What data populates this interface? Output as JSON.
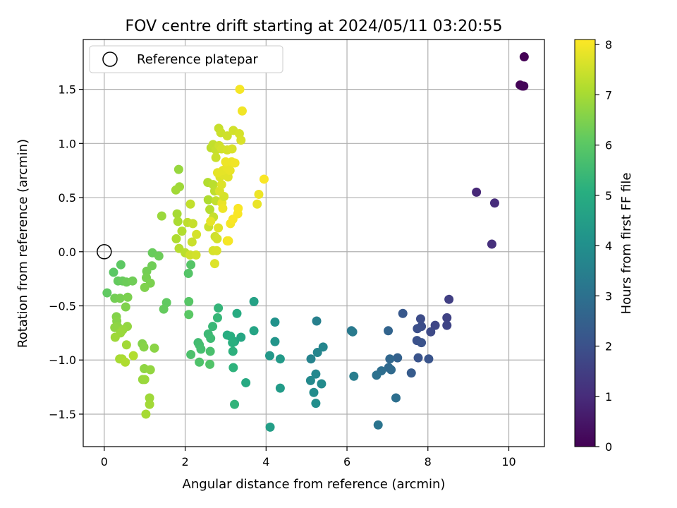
{
  "chart_data": {
    "type": "scatter",
    "title": "FOV centre drift starting at 2024/05/11 03:20:55",
    "xlabel": "Angular distance from reference (arcmin)",
    "ylabel": "Rotation from reference (arcmin)",
    "xlim": [
      -0.52,
      10.88
    ],
    "ylim": [
      -1.8,
      1.96
    ],
    "xticks": [
      0,
      2,
      4,
      6,
      8,
      10
    ],
    "xtick_labels": [
      "0",
      "2",
      "4",
      "6",
      "8",
      "10"
    ],
    "yticks": [
      -1.5,
      -1.0,
      -0.5,
      0.0,
      0.5,
      1.0,
      1.5
    ],
    "ytick_labels": [
      "−1.5",
      "−1.0",
      "−0.5",
      "0.0",
      "0.5",
      "1.0",
      "1.5"
    ],
    "grid": true,
    "legend": {
      "placement": "upper-left",
      "entries": [
        "Reference platepar"
      ]
    },
    "reference_point": {
      "x": 0,
      "y": 0
    },
    "colorbar": {
      "label": "Hours from first FF file",
      "range": [
        0,
        8.1
      ],
      "ticks": [
        0,
        1,
        2,
        3,
        4,
        5,
        6,
        7,
        8
      ],
      "tick_labels": [
        "0",
        "1",
        "2",
        "3",
        "4",
        "5",
        "6",
        "7",
        "8"
      ],
      "colormap": "viridis"
    },
    "points": [
      [
        10.38,
        1.8,
        0.03
      ],
      [
        10.28,
        1.54,
        0.05
      ],
      [
        10.33,
        1.53,
        0.07
      ],
      [
        10.37,
        1.53,
        0.1
      ],
      [
        9.2,
        0.55,
        0.9
      ],
      [
        9.65,
        0.45,
        1.0
      ],
      [
        9.58,
        0.07,
        1.1
      ],
      [
        8.52,
        -0.44,
        1.5
      ],
      [
        8.47,
        -0.61,
        1.6
      ],
      [
        8.47,
        -0.68,
        1.65
      ],
      [
        8.18,
        -0.68,
        1.7
      ],
      [
        8.07,
        -0.74,
        1.8
      ],
      [
        7.82,
        -0.62,
        1.85
      ],
      [
        7.84,
        -0.69,
        1.9
      ],
      [
        7.74,
        -0.71,
        1.95
      ],
      [
        7.73,
        -0.82,
        2.0
      ],
      [
        7.84,
        -0.84,
        2.05
      ],
      [
        7.76,
        -0.98,
        2.1
      ],
      [
        8.02,
        -0.99,
        2.1
      ],
      [
        7.38,
        -0.57,
        2.2
      ],
      [
        7.59,
        -1.12,
        2.3
      ],
      [
        7.25,
        -0.98,
        2.5
      ],
      [
        7.02,
        -0.73,
        2.6
      ],
      [
        7.06,
        -0.99,
        2.7
      ],
      [
        7.03,
        -1.07,
        2.75
      ],
      [
        7.09,
        -1.09,
        2.8
      ],
      [
        6.85,
        -1.1,
        2.9
      ],
      [
        7.21,
        -1.35,
        2.95
      ],
      [
        6.73,
        -1.14,
        3.0
      ],
      [
        6.77,
        -1.6,
        3.1
      ],
      [
        6.11,
        -0.73,
        3.2
      ],
      [
        6.14,
        -0.74,
        3.3
      ],
      [
        6.17,
        -1.15,
        3.4
      ],
      [
        5.25,
        -0.64,
        3.5
      ],
      [
        5.11,
        -0.99,
        3.6
      ],
      [
        5.27,
        -0.93,
        3.65
      ],
      [
        5.41,
        -0.88,
        3.7
      ],
      [
        5.23,
        -1.13,
        3.75
      ],
      [
        5.1,
        -1.19,
        3.8
      ],
      [
        5.37,
        -1.22,
        3.85
      ],
      [
        5.18,
        -1.3,
        3.9
      ],
      [
        5.23,
        -1.4,
        3.95
      ],
      [
        4.22,
        -0.65,
        4.1
      ],
      [
        4.22,
        -0.83,
        4.2
      ],
      [
        4.09,
        -0.96,
        4.3
      ],
      [
        4.35,
        -0.99,
        4.35
      ],
      [
        4.35,
        -1.26,
        4.4
      ],
      [
        4.1,
        -1.62,
        4.5
      ],
      [
        3.7,
        -0.46,
        4.6
      ],
      [
        3.7,
        -0.73,
        4.7
      ],
      [
        3.38,
        -0.79,
        4.8
      ],
      [
        3.22,
        -0.83,
        4.85
      ],
      [
        3.5,
        -1.21,
        4.9
      ],
      [
        3.28,
        -0.57,
        4.95
      ],
      [
        3.04,
        -0.77,
        5.0
      ],
      [
        3.12,
        -0.78,
        5.05
      ],
      [
        3.17,
        -0.84,
        5.1
      ],
      [
        3.18,
        -0.92,
        5.15
      ],
      [
        3.19,
        -1.07,
        5.2
      ],
      [
        3.22,
        -1.41,
        5.25
      ],
      [
        2.82,
        -0.52,
        5.3
      ],
      [
        2.8,
        -0.61,
        5.35
      ],
      [
        2.68,
        -0.69,
        5.4
      ],
      [
        2.57,
        -0.76,
        5.45
      ],
      [
        2.63,
        -0.8,
        5.5
      ],
      [
        2.32,
        -0.84,
        5.55
      ],
      [
        2.35,
        -0.86,
        5.6
      ],
      [
        2.39,
        -0.9,
        5.65
      ],
      [
        2.62,
        -0.92,
        5.7
      ],
      [
        2.14,
        -0.95,
        5.75
      ],
      [
        2.35,
        -1.02,
        5.8
      ],
      [
        2.61,
        -1.04,
        5.85
      ],
      [
        2.14,
        -0.12,
        5.9
      ],
      [
        2.08,
        -0.2,
        5.9
      ],
      [
        2.09,
        -0.46,
        5.95
      ],
      [
        2.09,
        -0.58,
        6.0
      ],
      [
        1.54,
        -0.47,
        6.1
      ],
      [
        1.47,
        -0.53,
        6.15
      ],
      [
        1.19,
        -0.01,
        6.2
      ],
      [
        1.35,
        -0.04,
        6.25
      ],
      [
        1.18,
        -0.13,
        6.3
      ],
      [
        1.05,
        -0.18,
        6.35
      ],
      [
        1.04,
        -0.24,
        6.4
      ],
      [
        1.14,
        -0.29,
        6.45
      ],
      [
        1.0,
        -0.33,
        6.5
      ],
      [
        0.94,
        -0.85,
        6.55
      ],
      [
        0.98,
        -0.88,
        6.6
      ],
      [
        1.24,
        -0.89,
        6.65
      ],
      [
        0.99,
        -1.08,
        6.7
      ],
      [
        1.14,
        -1.09,
        6.75
      ],
      [
        0.95,
        -1.18,
        6.8
      ],
      [
        1.0,
        -1.18,
        6.85
      ],
      [
        1.12,
        -1.35,
        6.9
      ],
      [
        1.12,
        -1.41,
        6.95
      ],
      [
        1.03,
        -1.5,
        7.0
      ],
      [
        0.23,
        -0.19,
        6.0
      ],
      [
        0.41,
        -0.12,
        6.05
      ],
      [
        0.07,
        -0.38,
        6.1
      ],
      [
        0.34,
        -0.27,
        6.15
      ],
      [
        0.45,
        -0.27,
        6.2
      ],
      [
        0.55,
        -0.28,
        6.25
      ],
      [
        0.7,
        -0.27,
        6.3
      ],
      [
        0.26,
        -0.43,
        6.35
      ],
      [
        0.39,
        -0.43,
        6.4
      ],
      [
        0.58,
        -0.42,
        6.45
      ],
      [
        0.53,
        -0.51,
        6.5
      ],
      [
        0.3,
        -0.6,
        6.55
      ],
      [
        0.31,
        -0.64,
        6.6
      ],
      [
        0.33,
        -0.69,
        6.65
      ],
      [
        0.26,
        -0.7,
        6.7
      ],
      [
        0.57,
        -0.69,
        6.75
      ],
      [
        0.46,
        -0.72,
        6.8
      ],
      [
        0.4,
        -0.75,
        6.85
      ],
      [
        0.27,
        -0.79,
        6.9
      ],
      [
        0.55,
        -0.86,
        6.95
      ],
      [
        0.38,
        -0.99,
        7.0
      ],
      [
        0.44,
        -0.99,
        7.05
      ],
      [
        0.52,
        -1.02,
        7.1
      ],
      [
        0.72,
        -0.96,
        7.15
      ],
      [
        1.84,
        0.76,
        6.8
      ],
      [
        1.42,
        0.33,
        6.85
      ],
      [
        1.86,
        0.6,
        6.9
      ],
      [
        1.77,
        0.57,
        6.95
      ],
      [
        1.8,
        0.35,
        7.0
      ],
      [
        1.82,
        0.28,
        7.05
      ],
      [
        1.78,
        0.12,
        7.1
      ],
      [
        1.92,
        0.19,
        7.15
      ],
      [
        1.85,
        0.03,
        7.2
      ],
      [
        2.0,
        -0.01,
        7.25
      ],
      [
        2.06,
        0.27,
        7.3
      ],
      [
        2.13,
        0.44,
        7.35
      ],
      [
        2.19,
        0.26,
        7.4
      ],
      [
        2.17,
        0.09,
        7.45
      ],
      [
        2.12,
        -0.03,
        7.5
      ],
      [
        2.27,
        -0.03,
        7.55
      ],
      [
        2.28,
        0.16,
        7.6
      ],
      [
        2.57,
        0.48,
        7.1
      ],
      [
        2.56,
        0.64,
        7.15
      ],
      [
        2.61,
        0.39,
        7.2
      ],
      [
        2.69,
        0.62,
        7.25
      ],
      [
        2.73,
        0.56,
        7.3
      ],
      [
        2.76,
        0.47,
        7.35
      ],
      [
        2.7,
        0.32,
        7.4
      ],
      [
        2.58,
        0.23,
        7.45
      ],
      [
        2.74,
        0.14,
        7.5
      ],
      [
        2.79,
        0.12,
        7.55
      ],
      [
        2.69,
        0.01,
        7.6
      ],
      [
        2.78,
        0.01,
        7.65
      ],
      [
        2.73,
        -0.11,
        7.7
      ],
      [
        2.82,
        0.22,
        7.75
      ],
      [
        2.63,
        0.28,
        7.8
      ],
      [
        2.91,
        0.45,
        7.85
      ],
      [
        2.93,
        0.4,
        7.9
      ],
      [
        3.04,
        0.1,
        7.95
      ],
      [
        3.07,
        0.1,
        8.0
      ],
      [
        3.12,
        0.26,
        8.0
      ],
      [
        3.18,
        0.3,
        8.05
      ],
      [
        3.3,
        0.35,
        8.05
      ],
      [
        3.31,
        0.4,
        8.05
      ],
      [
        2.96,
        0.51,
        7.6
      ],
      [
        2.85,
        0.56,
        7.65
      ],
      [
        2.9,
        0.62,
        7.7
      ],
      [
        2.86,
        0.69,
        7.7
      ],
      [
        2.95,
        0.71,
        7.75
      ],
      [
        3.06,
        0.69,
        7.75
      ],
      [
        2.8,
        0.73,
        7.8
      ],
      [
        2.93,
        0.75,
        7.8
      ],
      [
        3.03,
        0.78,
        7.85
      ],
      [
        3.11,
        0.75,
        7.85
      ],
      [
        3.0,
        0.83,
        7.9
      ],
      [
        3.15,
        0.83,
        7.9
      ],
      [
        3.23,
        0.82,
        7.95
      ],
      [
        2.64,
        0.96,
        7.3
      ],
      [
        2.69,
        0.99,
        7.35
      ],
      [
        2.76,
        0.94,
        7.4
      ],
      [
        2.76,
        0.87,
        7.45
      ],
      [
        2.84,
        0.98,
        7.5
      ],
      [
        2.9,
        0.95,
        7.55
      ],
      [
        3.04,
        0.94,
        7.6
      ],
      [
        3.16,
        0.95,
        7.65
      ],
      [
        2.83,
        1.14,
        7.4
      ],
      [
        2.88,
        1.1,
        7.45
      ],
      [
        3.04,
        1.07,
        7.5
      ],
      [
        3.19,
        1.12,
        7.55
      ],
      [
        3.34,
        1.09,
        7.6
      ],
      [
        3.38,
        1.03,
        7.65
      ],
      [
        3.35,
        1.5,
        8.0
      ],
      [
        3.41,
        1.3,
        7.95
      ],
      [
        3.95,
        0.67,
        8.05
      ],
      [
        3.82,
        0.53,
        7.9
      ],
      [
        3.78,
        0.44,
        7.85
      ]
    ]
  }
}
